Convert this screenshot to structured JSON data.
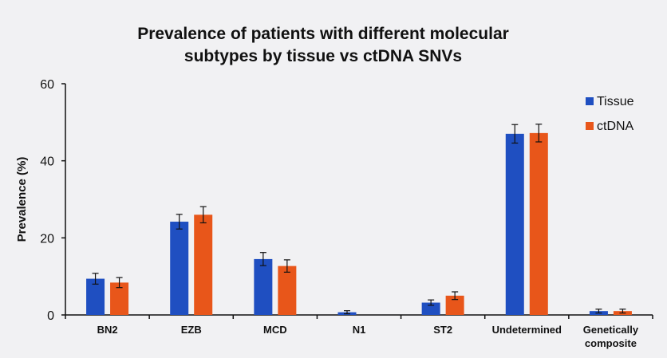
{
  "chart_data": {
    "type": "bar",
    "title_lines": [
      "Prevalence of patients with different molecular",
      "subtypes by tissue vs ctDNA SNVs"
    ],
    "xlabel": "",
    "ylabel": "Prevalence (%)",
    "ylim": [
      0,
      60
    ],
    "yticks": [
      0,
      20,
      40,
      60
    ],
    "grid": false,
    "legend_position": "top-right",
    "categories": [
      [
        "BN2"
      ],
      [
        "EZB"
      ],
      [
        "MCD"
      ],
      [
        "N1"
      ],
      [
        "ST2"
      ],
      [
        "Undetermined"
      ],
      [
        "Genetically",
        "composite"
      ]
    ],
    "series": [
      {
        "name": "Tissue",
        "color": "#1f4fc1",
        "values": [
          9.4,
          24.2,
          14.5,
          0.7,
          3.2,
          47.0,
          1.0
        ],
        "errors": [
          1.4,
          1.9,
          1.7,
          0.4,
          0.7,
          2.4,
          0.5
        ]
      },
      {
        "name": "ctDNA",
        "color": "#e8561a",
        "values": [
          8.4,
          26.0,
          12.7,
          0.0,
          5.0,
          47.2,
          1.0
        ],
        "errors": [
          1.3,
          2.1,
          1.6,
          0.0,
          1.0,
          2.3,
          0.5
        ]
      }
    ]
  }
}
